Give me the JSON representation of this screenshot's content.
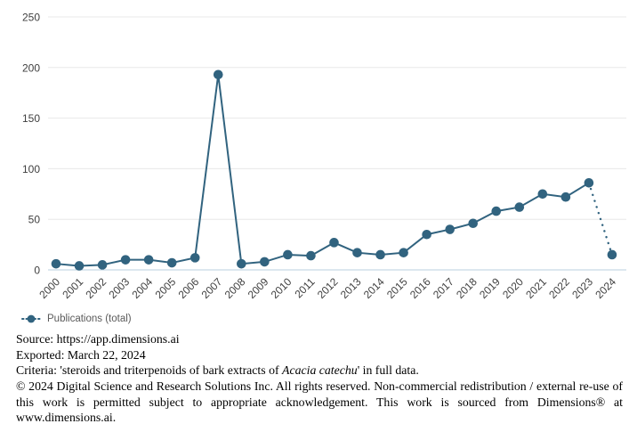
{
  "chart_data": {
    "type": "line",
    "title": "",
    "xlabel": "",
    "ylabel": "",
    "x": [
      "2000",
      "2001",
      "2002",
      "2003",
      "2004",
      "2005",
      "2006",
      "2007",
      "2008",
      "2009",
      "2010",
      "2011",
      "2012",
      "2013",
      "2014",
      "2015",
      "2016",
      "2017",
      "2018",
      "2019",
      "2020",
      "2021",
      "2022",
      "2023",
      "2024"
    ],
    "series": [
      {
        "name": "Publications (total)",
        "values": [
          6,
          4,
          5,
          10,
          10,
          7,
          12,
          193,
          6,
          8,
          15,
          14,
          27,
          17,
          15,
          17,
          35,
          40,
          46,
          58,
          62,
          75,
          72,
          86,
          15
        ]
      }
    ],
    "ylim": [
      0,
      250
    ],
    "y_ticks": [
      0,
      50,
      100,
      150,
      200,
      250
    ],
    "grid": "horizontal",
    "legend_position": "bottom-left",
    "last_segment_style": "dotted"
  },
  "colors": {
    "series": "#31637F",
    "gridline": "#e8e8e8",
    "axis_line": "#b9cfdf",
    "tick_text": "#3f3f3f"
  },
  "legend": {
    "label": "Publications (total)"
  },
  "footer": {
    "source_line": "Source: https://app.dimensions.ai",
    "exported_line": "Exported: March 22, 2024",
    "criteria_prefix": "Criteria: 'steroids and triterpenoids of bark extracts of ",
    "criteria_italic": "Acacia catechu",
    "criteria_suffix": "' in full data.",
    "copyright_text": "© 2024 Digital Science and Research Solutions Inc. All rights reserved. Non-commercial redistribution / external re-use of this work is permitted subject to appropriate acknowledgement. This work is sourced from Dimensions® at www.dimensions.ai."
  }
}
